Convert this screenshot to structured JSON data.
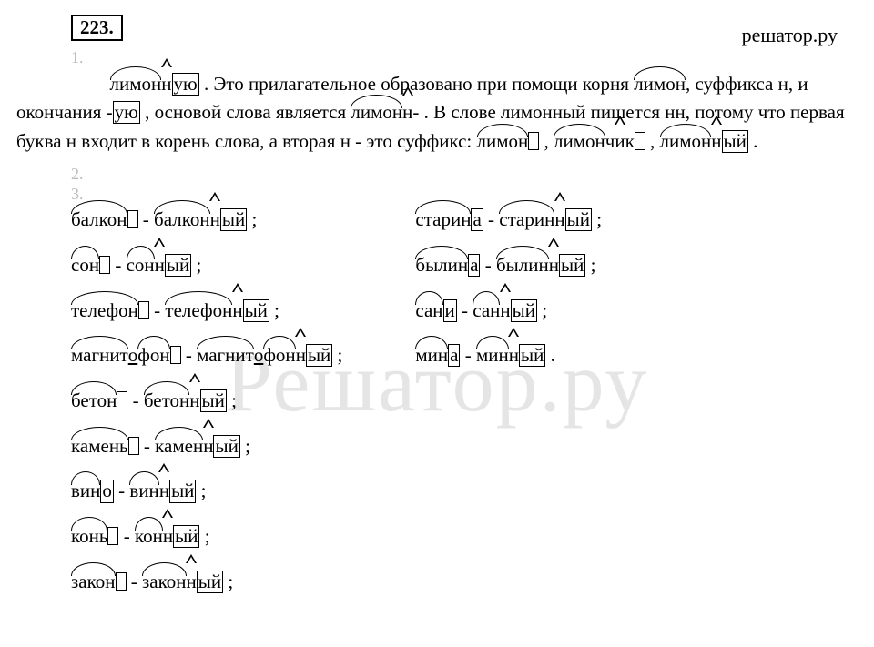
{
  "task_number": "223.",
  "site_brand": "решатор.ру",
  "watermark": "Решатор.ру",
  "sub_labels": {
    "s1": "1.",
    "s2": "2.",
    "s3": "3."
  },
  "paragraph": {
    "p1_indent": "",
    "w_limonnuyu_root": "лимон",
    "w_limonnuyu_suf": "н",
    "w_limonnuyu_end": "ую",
    "p1a": " . Это прилагательное образовано при помощи корня ",
    "w_limon_root": "лимон",
    "p1b": ", суффикса н, и окончания -",
    "w_uyu_end": "ую",
    "p1c": " , основой слова является ",
    "w_limonn_root": "лимон",
    "w_limonn_suf": "н",
    "p1d": "- . В слове лимонный пишется нн, потому что первая буква н входит в корень слова, а вторая н - это суффикс: ",
    "w_limon2_root": "лимон",
    "sep1": " , ",
    "w_limonchik_root": "лимон",
    "w_limonchik_suf": "чик",
    "sep2": " , ",
    "w_limonnyy_root": "лимон",
    "w_limonnyy_suf": "н",
    "w_limonnyy_end": "ый",
    "p1e": " ."
  },
  "left_col": [
    {
      "noun_root": "балкон",
      "noun_zero": true,
      "adj_root": "балкон",
      "adj_suf": "н",
      "adj_end": "ый"
    },
    {
      "noun_root": "сон",
      "noun_zero": true,
      "adj_root": "сон",
      "adj_suf": "н",
      "adj_end": "ый"
    },
    {
      "noun_root": "телефон",
      "noun_zero": true,
      "adj_root": "телефон",
      "adj_suf": "н",
      "adj_end": "ый"
    },
    {
      "noun_root": "магнит",
      "noun_conn": "о",
      "noun_root2": "фон",
      "noun_zero": true,
      "adj_root": "магнит",
      "adj_conn": "о",
      "adj_root2": "фон",
      "adj_suf": "н",
      "adj_end": "ый"
    },
    {
      "noun_root": "бетон",
      "noun_zero": true,
      "adj_root": "бетон",
      "adj_suf": "н",
      "adj_end": "ый"
    },
    {
      "noun_root": "камень",
      "noun_zero": true,
      "adj_root": "камен",
      "adj_suf": "н",
      "adj_end": "ый"
    },
    {
      "noun_root": "вин",
      "noun_end": "о",
      "adj_root": "вин",
      "adj_suf": "н",
      "adj_end": "ый"
    },
    {
      "noun_root": "конь",
      "noun_zero": true,
      "adj_root": "кон",
      "adj_suf": "н",
      "adj_end": "ый"
    },
    {
      "noun_root": "закон",
      "noun_zero": true,
      "adj_root": "закон",
      "adj_suf": "н",
      "adj_end": "ый"
    }
  ],
  "right_col": [
    {
      "noun_root": "старин",
      "noun_end": "а",
      "adj_root": "старин",
      "adj_suf": "н",
      "adj_end": "ый"
    },
    {
      "noun_root": "былин",
      "noun_end": "а",
      "adj_root": "былин",
      "adj_suf": "н",
      "adj_end": "ый"
    },
    {
      "noun_root": "сан",
      "noun_end": "и",
      "adj_root": "сан",
      "adj_suf": "н",
      "adj_end": "ый"
    },
    {
      "noun_root": "мин",
      "noun_end": "а",
      "adj_root": "мин",
      "adj_suf": "н",
      "adj_end": "ый",
      "terminal": "."
    }
  ],
  "dash": " - ",
  "semi": " ;"
}
